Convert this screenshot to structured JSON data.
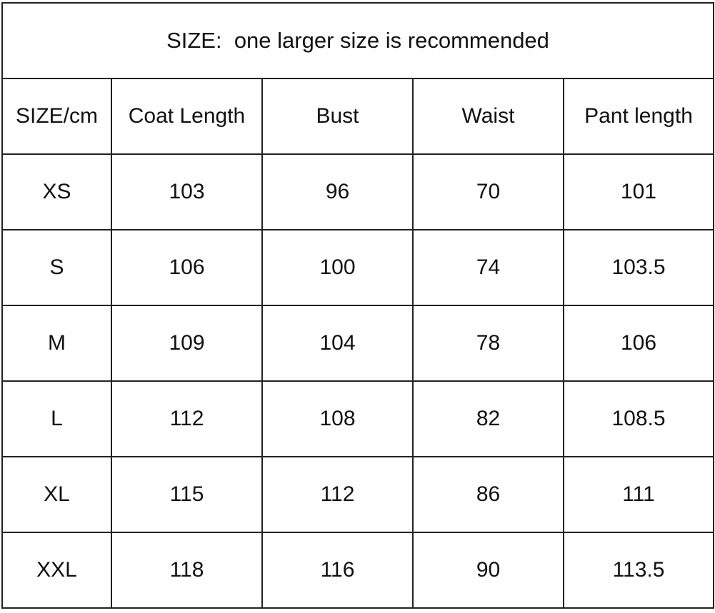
{
  "title": "SIZE:  one larger size is recommended",
  "headers": [
    "SIZE/cm",
    "Coat Length",
    "Bust",
    "Waist",
    "Pant length"
  ],
  "rows": [
    [
      "XS",
      "103",
      "96",
      "70",
      "101"
    ],
    [
      "S",
      "106",
      "100",
      "74",
      "103.5"
    ],
    [
      "M",
      "109",
      "104",
      "78",
      "106"
    ],
    [
      "L",
      "112",
      "108",
      "82",
      "108.5"
    ],
    [
      "XL",
      "115",
      "112",
      "86",
      "111"
    ],
    [
      "XXL",
      "118",
      "116",
      "90",
      "113.5"
    ]
  ]
}
